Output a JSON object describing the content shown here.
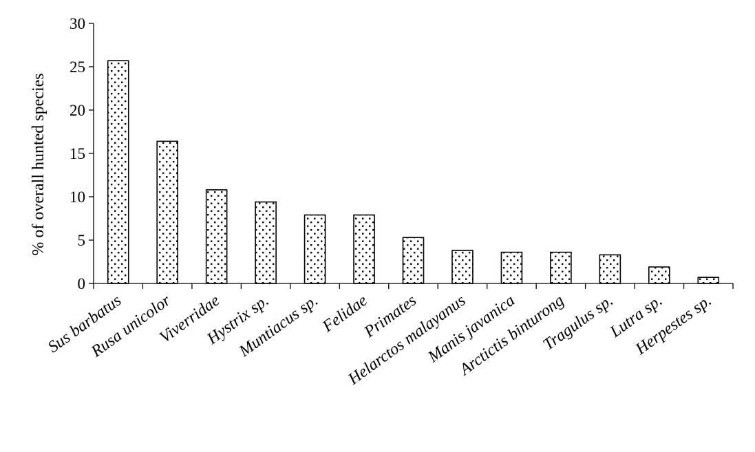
{
  "chart_data": {
    "type": "bar",
    "title": "",
    "xlabel": "",
    "ylabel": "% of overall hunted species",
    "ylim": [
      0,
      30
    ],
    "yticks": [
      0,
      5,
      10,
      15,
      20,
      25,
      30
    ],
    "grid": false,
    "legend": "none",
    "bar_fill": "dotted",
    "categories": [
      "Sus barbatus",
      "Rusa unicolor",
      "Viverridae",
      "Hystrix sp.",
      "Muntiacus sp.",
      "Felidae",
      "Primates",
      "Helarctos malayanus",
      "Manis javanica",
      "Arctictis binturong",
      "Tragulus sp.",
      "Lutra sp.",
      "Herpestes sp."
    ],
    "values": [
      25.7,
      16.4,
      10.8,
      9.4,
      7.9,
      7.9,
      5.3,
      3.8,
      3.6,
      3.6,
      3.3,
      1.9,
      0.7
    ],
    "colors": {
      "axis": "#000000",
      "bar_fill": "#ffffff",
      "bar_dots": "#000000"
    }
  }
}
